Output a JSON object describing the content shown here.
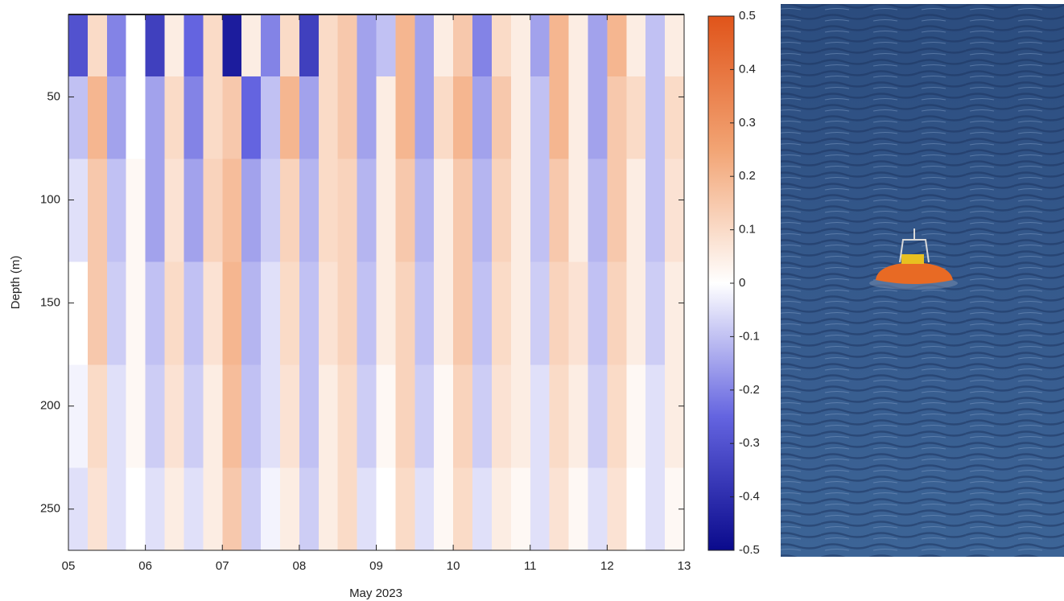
{
  "chart_data": {
    "type": "heatmap",
    "xlabel": "May 2023",
    "ylabel": "Depth (m)",
    "xlim": [
      5,
      13
    ],
    "xticks": [
      {
        "value": 5,
        "label": "05"
      },
      {
        "value": 6,
        "label": "06"
      },
      {
        "value": 7,
        "label": "07"
      },
      {
        "value": 8,
        "label": "08"
      },
      {
        "value": 9,
        "label": "09"
      },
      {
        "value": 10,
        "label": "10"
      },
      {
        "value": 11,
        "label": "11"
      },
      {
        "value": 12,
        "label": "12"
      },
      {
        "value": 13,
        "label": "13"
      }
    ],
    "ylim": [
      10,
      270
    ],
    "y_inverted": true,
    "yticks": [
      50,
      100,
      150,
      200,
      250
    ],
    "x_bins": [
      5,
      5.25,
      5.5,
      5.75,
      6,
      6.25,
      6.5,
      6.75,
      7,
      7.25,
      7.5,
      7.75,
      8,
      8.25,
      8.5,
      8.75,
      9,
      9.25,
      9.5,
      9.75,
      10,
      10.25,
      10.5,
      10.75,
      11,
      11.25,
      11.5,
      11.75,
      12,
      12.25,
      12.5,
      12.75,
      13
    ],
    "y_bins": [
      10,
      40,
      80,
      130,
      180,
      230,
      270
    ],
    "z": [
      [
        -0.3,
        0.1,
        -0.2,
        0.0,
        -0.35,
        0.05,
        -0.25,
        0.1,
        -0.45,
        0.05,
        -0.2,
        0.1,
        -0.35,
        0.1,
        0.15,
        -0.15,
        -0.1,
        0.2,
        -0.15,
        0.05,
        0.15,
        -0.2,
        0.1,
        0.05,
        -0.15,
        0.2,
        0.05,
        -0.15,
        0.2,
        0.05,
        -0.1,
        0.05
      ],
      [
        -0.1,
        0.2,
        -0.15,
        0.0,
        -0.15,
        0.1,
        -0.2,
        0.1,
        0.15,
        -0.25,
        -0.1,
        0.2,
        -0.15,
        0.1,
        0.15,
        -0.15,
        0.05,
        0.2,
        -0.15,
        0.1,
        0.2,
        -0.15,
        0.15,
        0.05,
        -0.1,
        0.2,
        0.05,
        -0.15,
        0.15,
        0.1,
        -0.1,
        0.1
      ],
      [
        -0.05,
        0.15,
        -0.1,
        0.02,
        -0.15,
        0.08,
        -0.15,
        0.12,
        0.18,
        -0.15,
        -0.08,
        0.12,
        -0.12,
        0.1,
        0.12,
        -0.12,
        0.05,
        0.15,
        -0.12,
        0.05,
        0.15,
        -0.12,
        0.12,
        0.05,
        -0.1,
        0.15,
        0.05,
        -0.12,
        0.15,
        0.05,
        -0.1,
        0.08
      ],
      [
        0.0,
        0.15,
        -0.08,
        0.02,
        -0.1,
        0.1,
        -0.1,
        0.08,
        0.2,
        -0.12,
        -0.05,
        0.1,
        -0.1,
        0.08,
        0.12,
        -0.1,
        0.05,
        0.12,
        -0.1,
        0.05,
        0.15,
        -0.1,
        0.1,
        0.05,
        -0.08,
        0.12,
        0.08,
        -0.1,
        0.12,
        0.05,
        -0.08,
        0.05
      ],
      [
        -0.02,
        0.1,
        -0.05,
        0.02,
        -0.08,
        0.08,
        -0.08,
        0.05,
        0.18,
        -0.1,
        -0.05,
        0.08,
        -0.1,
        0.05,
        0.1,
        -0.08,
        0.02,
        0.12,
        -0.08,
        0.02,
        0.12,
        -0.08,
        0.08,
        0.05,
        -0.05,
        0.1,
        0.05,
        -0.08,
        0.1,
        0.02,
        -0.05,
        0.05
      ],
      [
        -0.05,
        0.08,
        -0.05,
        0.0,
        -0.05,
        0.05,
        -0.05,
        0.05,
        0.15,
        -0.08,
        -0.02,
        0.05,
        -0.08,
        0.05,
        0.1,
        -0.05,
        0.0,
        0.1,
        -0.05,
        0.02,
        0.1,
        -0.05,
        0.05,
        0.02,
        -0.05,
        0.08,
        0.02,
        -0.05,
        0.08,
        0.0,
        -0.05,
        0.02
      ]
    ],
    "clim": [
      -0.5,
      0.5
    ],
    "cticks": [
      0.5,
      0.4,
      0.3,
      0.2,
      0.1,
      0,
      -0.1,
      -0.2,
      -0.3,
      -0.4,
      -0.5
    ],
    "colormap": [
      "#0a0a8c",
      "#6464e0",
      "#ffffff",
      "#f2a474",
      "#e0541a"
    ]
  }
}
